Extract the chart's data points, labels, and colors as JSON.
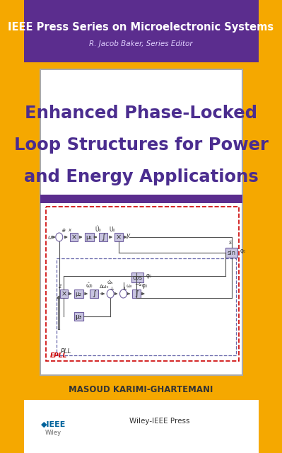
{
  "bg_color": "#F5A800",
  "header_bg": "#5B2D8E",
  "header_text": "IEEE Press Series on Microelectronic Systems",
  "header_subtext": "R. Jacob Baker, Series Editor",
  "title_line1": "Enhanced Phase-Locked",
  "title_line2": "Loop Structures for Power",
  "title_line3": "and Energy Applications",
  "title_color": "#4B2D8F",
  "white_panel_bg": "#FFFFFF",
  "purple_stripe": "#5B2D8E",
  "author_name": "MASOUD KARIMI-GHARTEMANI",
  "footer_bg": "#FFFFFF",
  "ieee_logo_color": "#00629B",
  "diagram_border": "#CC0000",
  "diagram_bg": "#FFFFFF",
  "box_fill": "#C8C4E0",
  "box_stroke": "#7060A0"
}
